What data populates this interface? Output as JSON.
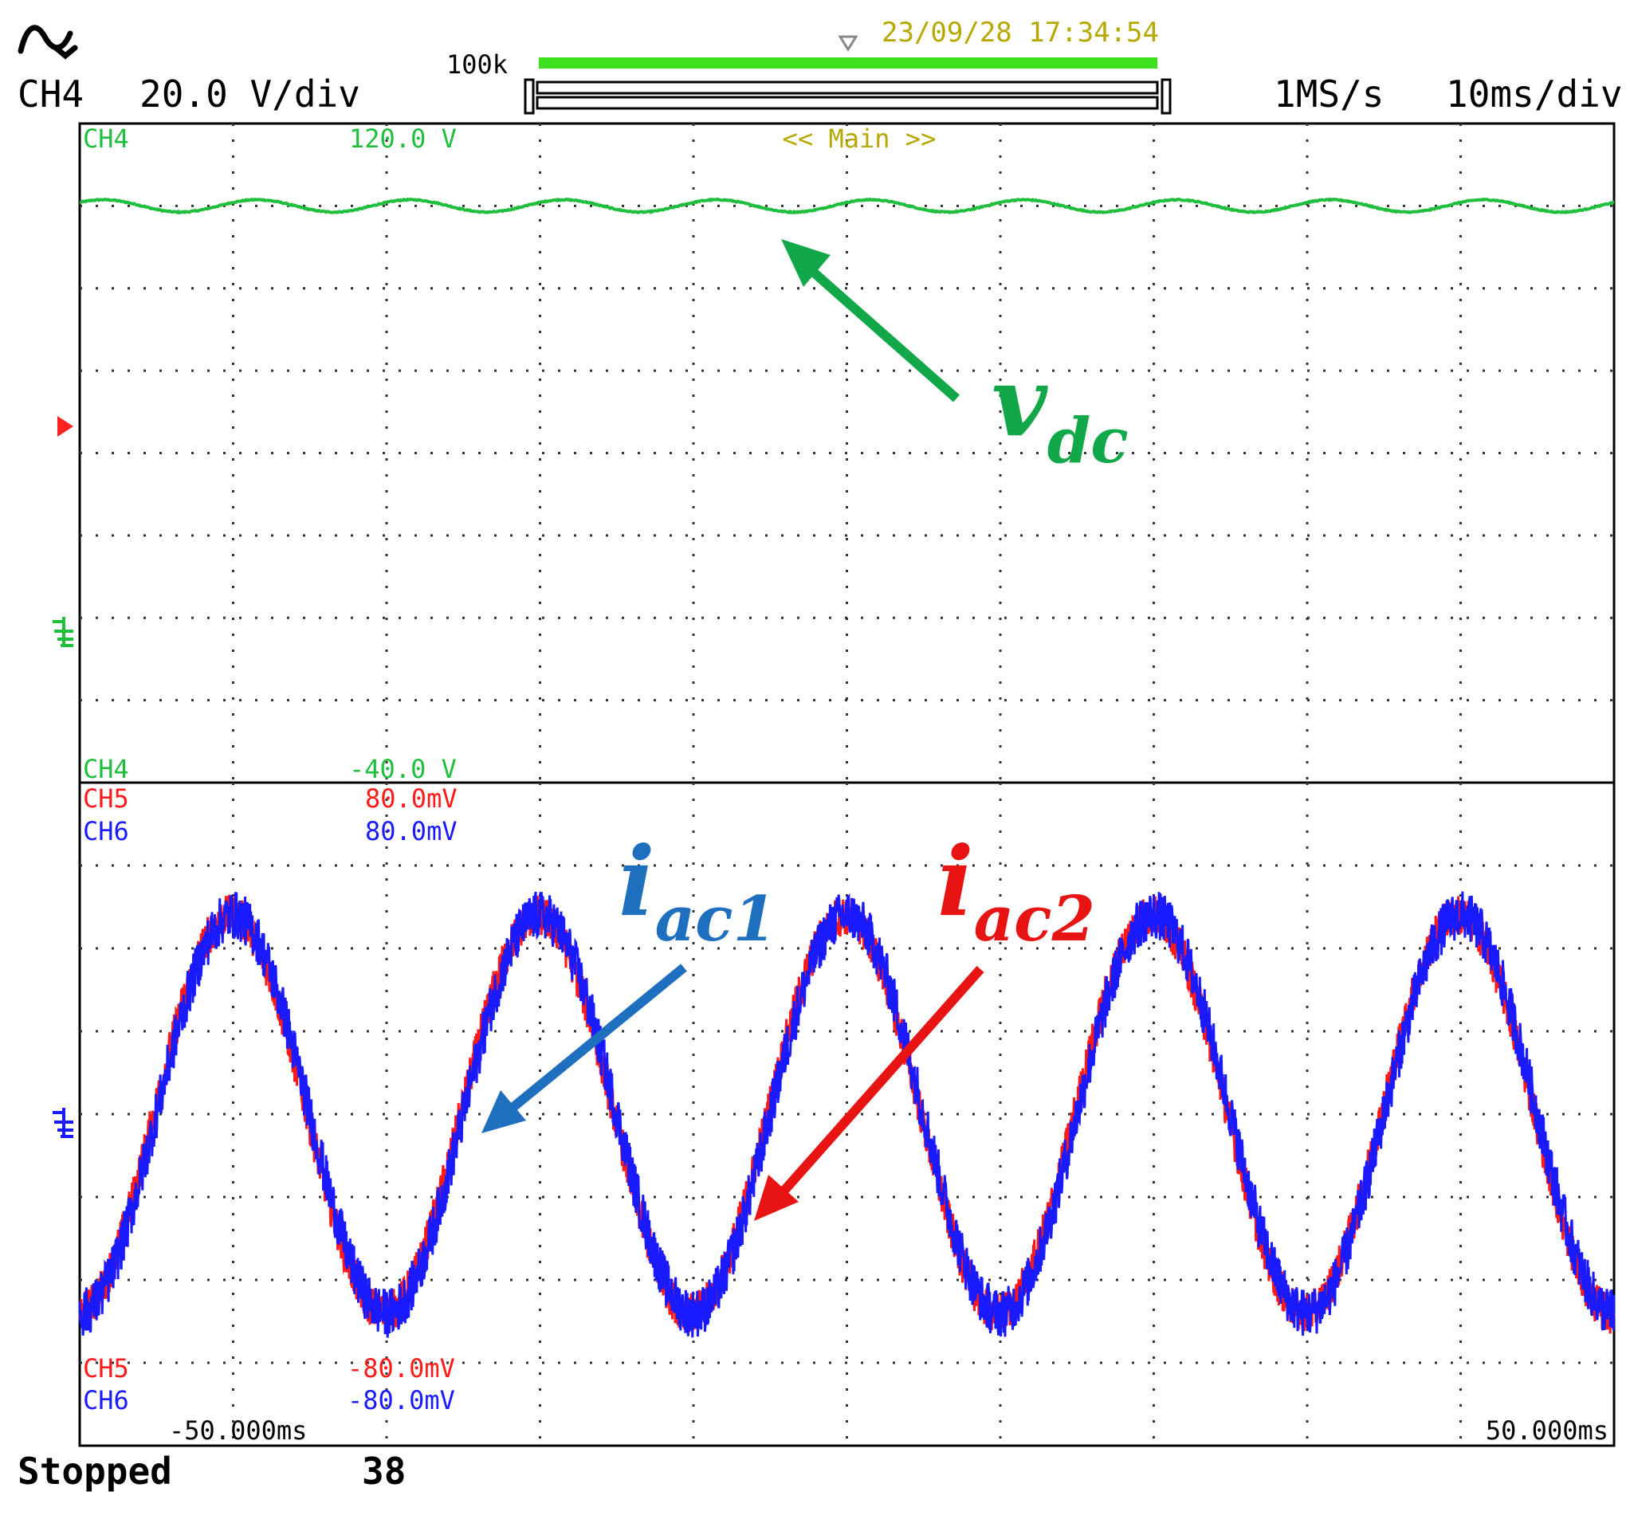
{
  "header": {
    "waveform_icon": "ac-sine-icon",
    "channel": "CH4",
    "vdiv": "20.0 V/div",
    "record_length": "100k",
    "timestamp": "23/09/28 17:34:54",
    "sample_rate": "1MS/s",
    "timebase": "10ms/div",
    "zoom_label": "<< Main >>",
    "record_bar_fraction": 0.6
  },
  "upper_panel": {
    "channel_top": "CH4",
    "value_top": "120.0 V",
    "channel_bottom": "CH4",
    "value_bottom": "-40.0 V"
  },
  "lower_panel": {
    "ch5_top": "CH5",
    "ch5_top_value": "80.0mV",
    "ch6_top": "CH6",
    "ch6_top_value": "80.0mV",
    "ch5_bottom": "CH5",
    "ch5_bottom_value": "-80.0mV",
    "ch6_bottom": "CH6",
    "ch6_bottom_value": "-80.0mV"
  },
  "time_axis": {
    "left": "-50.000ms",
    "right": "50.000ms"
  },
  "status": {
    "state": "Stopped",
    "count": "38"
  },
  "annotations": {
    "vdc": {
      "main": "v",
      "sub": "dc"
    },
    "iac1": {
      "main": "i",
      "sub": "ac1"
    },
    "iac2": {
      "main": "i",
      "sub": "ac2"
    }
  },
  "colors": {
    "ch4": "#1fbe3c",
    "ch5": "#ff1a1a",
    "ch6": "#1a1aff",
    "vdc_label": "#12a84a",
    "iac1_label": "#1f6fbf",
    "iac2_label": "#e81414",
    "header_bar": "#3ce01e",
    "timestamp": "#b5a800",
    "trigger": "#ff2020"
  },
  "chart_data": {
    "type": "line",
    "x_range_ms": [
      -50,
      50
    ],
    "upper": {
      "y_range_v": [
        -40,
        120
      ],
      "ground_v": 0,
      "series": [
        {
          "channel": "CH4",
          "label": "v_dc",
          "mean_v": 100,
          "ripple_amplitude_v": 1.5,
          "ripple_frequency_hz": 100
        }
      ]
    },
    "lower": {
      "y_range_mv": [
        -80,
        80
      ],
      "ground_mv": 0,
      "series": [
        {
          "channel": "CH5",
          "label": "i_ac2",
          "amplitude_mv": 48,
          "frequency_hz": 50,
          "phase_deg_at_minus50ms": 0
        },
        {
          "channel": "CH6",
          "label": "i_ac1",
          "amplitude_mv": 48,
          "frequency_hz": 50,
          "phase_deg_at_minus50ms": 0
        }
      ]
    }
  }
}
